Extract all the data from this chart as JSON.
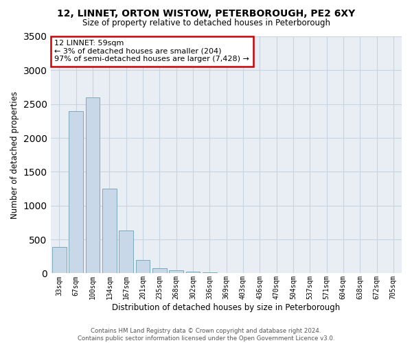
{
  "title1": "12, LINNET, ORTON WISTOW, PETERBOROUGH, PE2 6XY",
  "title2": "Size of property relative to detached houses in Peterborough",
  "xlabel": "Distribution of detached houses by size in Peterborough",
  "ylabel": "Number of detached properties",
  "categories": [
    "33sqm",
    "67sqm",
    "100sqm",
    "134sqm",
    "167sqm",
    "201sqm",
    "235sqm",
    "268sqm",
    "302sqm",
    "336sqm",
    "369sqm",
    "403sqm",
    "436sqm",
    "470sqm",
    "504sqm",
    "537sqm",
    "571sqm",
    "604sqm",
    "638sqm",
    "672sqm",
    "705sqm"
  ],
  "values": [
    390,
    2400,
    2600,
    1250,
    630,
    200,
    80,
    40,
    20,
    10,
    8,
    5,
    3,
    2,
    2,
    2,
    1,
    1,
    1,
    1,
    1
  ],
  "bar_color": "#c8d8e8",
  "bar_edge_color": "#7aaabb",
  "annotation_text": "12 LINNET: 59sqm\n← 3% of detached houses are smaller (204)\n97% of semi-detached houses are larger (7,428) →",
  "annotation_box_color": "#ffffff",
  "annotation_box_edge": "#cc0000",
  "ylim": [
    0,
    3500
  ],
  "yticks": [
    0,
    500,
    1000,
    1500,
    2000,
    2500,
    3000,
    3500
  ],
  "footer": "Contains HM Land Registry data © Crown copyright and database right 2024.\nContains public sector information licensed under the Open Government Licence v3.0.",
  "background_color": "#ffffff",
  "plot_bg_color": "#e8eef4",
  "grid_color": "#c8d4e0"
}
